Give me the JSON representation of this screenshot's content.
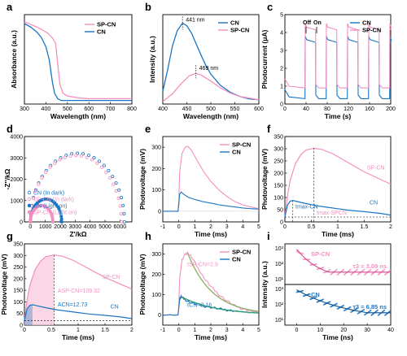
{
  "colors": {
    "pink": "#F48FC0",
    "blue": "#1A75C4",
    "lightpink": "#F9C9DE",
    "green": "#2E9E74",
    "olive": "#8DB36A"
  },
  "chart_data": [
    {
      "id": "a",
      "type": "line",
      "panel_label": "a",
      "xlabel": "Wavelength (nm)",
      "ylabel": "Absorbance (a.u.)",
      "xlim": [
        300,
        800
      ],
      "xticks": [
        300,
        400,
        500,
        600,
        700,
        800
      ],
      "legend": "top-right",
      "series": [
        {
          "name": "SP-CN",
          "color": "pink",
          "x": [
            300,
            330,
            360,
            390,
            410,
            430,
            445,
            455,
            465,
            480,
            500,
            550,
            600,
            700,
            800
          ],
          "y": [
            0.92,
            0.89,
            0.86,
            0.82,
            0.79,
            0.74,
            0.68,
            0.45,
            0.22,
            0.12,
            0.09,
            0.07,
            0.06,
            0.06,
            0.06
          ]
        },
        {
          "name": "CN",
          "color": "blue",
          "x": [
            300,
            330,
            360,
            380,
            400,
            415,
            430,
            440,
            455,
            470,
            500,
            600,
            800
          ],
          "y": [
            0.9,
            0.86,
            0.8,
            0.74,
            0.64,
            0.5,
            0.25,
            0.12,
            0.06,
            0.04,
            0.04,
            0.04,
            0.04
          ]
        }
      ]
    },
    {
      "id": "b",
      "type": "line",
      "panel_label": "b",
      "xlabel": "Wavelength (nm)",
      "ylabel": "Intensity (a.u.)",
      "xlim": [
        400,
        600
      ],
      "xticks": [
        400,
        450,
        500,
        550,
        600
      ],
      "legend": "top-right",
      "annotations": [
        {
          "text": "441 nm",
          "x": 441,
          "y": 0.95
        },
        {
          "text": "469 nm",
          "x": 469,
          "y": 0.38
        }
      ],
      "series": [
        {
          "name": "CN",
          "color": "blue",
          "x": [
            400,
            410,
            420,
            430,
            441,
            450,
            460,
            470,
            480,
            490,
            500,
            520,
            540,
            560,
            580,
            600
          ],
          "y": [
            0.15,
            0.4,
            0.68,
            0.86,
            0.95,
            0.92,
            0.83,
            0.7,
            0.57,
            0.45,
            0.35,
            0.22,
            0.14,
            0.09,
            0.06,
            0.05
          ]
        },
        {
          "name": "SP-CN",
          "color": "pink",
          "x": [
            400,
            420,
            440,
            455,
            469,
            480,
            500,
            520,
            540,
            560,
            580,
            600
          ],
          "y": [
            0.03,
            0.12,
            0.25,
            0.33,
            0.36,
            0.34,
            0.27,
            0.19,
            0.13,
            0.09,
            0.07,
            0.05
          ]
        }
      ]
    },
    {
      "id": "c",
      "type": "line",
      "panel_label": "c",
      "xlabel": "Time (s)",
      "ylabel": "Photocurrent (μA)",
      "xlim": [
        0,
        200
      ],
      "ylim": [
        0,
        5
      ],
      "xticks": [
        0,
        40,
        80,
        120,
        160,
        200
      ],
      "yticks": [
        0,
        1,
        2,
        3,
        4,
        5
      ],
      "legend": "top-right",
      "annotations": [
        {
          "text": "Off",
          "x": 40
        },
        {
          "text": "On",
          "x": 60
        }
      ],
      "series": [
        {
          "name": "CN",
          "color": "blue",
          "on": [
            [
              38,
              58
            ],
            [
              78,
              98
            ],
            [
              118,
              138
            ],
            [
              158,
              178
            ],
            [
              198,
              200
            ]
          ],
          "on_level": 3.6,
          "off_level": 0.3
        },
        {
          "name": "SP-CN",
          "color": "pink",
          "on": [
            [
              38,
              58
            ],
            [
              78,
              98
            ],
            [
              118,
              138
            ],
            [
              158,
              178
            ],
            [
              198,
              200
            ]
          ],
          "on_level": 4.3,
          "off_level": 0.9
        }
      ]
    },
    {
      "id": "d",
      "type": "scatter",
      "panel_label": "d",
      "xlabel": "Z'/kΩ",
      "ylabel": "-Z''/kΩ",
      "xlim": [
        -400,
        6800
      ],
      "ylim": [
        0,
        4000
      ],
      "xticks": [
        0,
        1000,
        2000,
        3000,
        4000,
        5000,
        6000
      ],
      "yticks": [
        0,
        1000,
        2000,
        3000,
        4000
      ],
      "legend": "bottom-left",
      "series": [
        {
          "name": "CN (In dark)",
          "color": "blue",
          "marker": "open-circle",
          "x0": 0,
          "x1": 6300
        },
        {
          "name": "SP-CN (In dark)",
          "color": "pink",
          "marker": "open-circle",
          "x0": 0,
          "x1": 6100
        },
        {
          "name": "CN (Light on)",
          "color": "blue",
          "marker": "filled-circle",
          "x0": 0,
          "x1": 2100
        },
        {
          "name": "SP-CN (Light on)",
          "color": "pink",
          "marker": "filled-circle",
          "x0": 0,
          "x1": 1500
        }
      ]
    },
    {
      "id": "e",
      "type": "line",
      "panel_label": "e",
      "xlabel": "Time (ms)",
      "ylabel": "Photovoltage (mV)",
      "xlim": [
        -1,
        5
      ],
      "ylim": [
        -50,
        350
      ],
      "xticks": [
        -1,
        0,
        1,
        2,
        3,
        4,
        5
      ],
      "yticks": [
        0,
        100,
        200,
        300
      ],
      "legend": "top-right",
      "series": [
        {
          "name": "SP-CN",
          "color": "pink",
          "x": [
            -1,
            -0.05,
            0,
            0.05,
            0.2,
            0.4,
            0.55,
            0.8,
            1.2,
            1.6,
            2,
            2.5,
            3,
            3.5,
            4,
            4.5,
            5
          ],
          "y": [
            0,
            0,
            50,
            180,
            270,
            300,
            305,
            285,
            230,
            180,
            140,
            100,
            70,
            45,
            30,
            20,
            12
          ]
        },
        {
          "name": "CN",
          "color": "blue",
          "x": [
            -1,
            -0.05,
            0,
            0.05,
            0.15,
            0.3,
            0.6,
            1,
            1.5,
            2,
            2.5,
            3,
            3.5,
            4,
            4.5,
            5
          ],
          "y": [
            0,
            0,
            30,
            80,
            90,
            80,
            65,
            55,
            45,
            38,
            30,
            25,
            20,
            15,
            12,
            10
          ]
        }
      ]
    },
    {
      "id": "f",
      "type": "line",
      "panel_label": "f",
      "xlabel": "Time (ms)",
      "ylabel": "Photovoltage (mV)",
      "xlim": [
        0,
        2
      ],
      "ylim": [
        0,
        350
      ],
      "xticks": [
        0,
        0.5,
        1,
        1.5,
        2
      ],
      "yticks": [
        0,
        50,
        100,
        150,
        200,
        250,
        300,
        350
      ],
      "annotations": [
        {
          "text": "tmax-CN",
          "x": 0.15
        },
        {
          "text": "tmax-SPCN",
          "x": 0.55
        },
        {
          "text": "SP-CN"
        },
        {
          "text": "CN"
        }
      ],
      "series": [
        {
          "name": "SP-CN",
          "color": "pink",
          "x": [
            0,
            0.05,
            0.1,
            0.2,
            0.3,
            0.4,
            0.55,
            0.7,
            0.9,
            1.1,
            1.3,
            1.5,
            1.7,
            2
          ],
          "y": [
            20,
            110,
            170,
            240,
            275,
            295,
            302,
            297,
            280,
            255,
            230,
            205,
            185,
            155
          ]
        },
        {
          "name": "CN",
          "color": "blue",
          "x": [
            0,
            0.05,
            0.1,
            0.15,
            0.2,
            0.4,
            0.6,
            0.8,
            1,
            1.2,
            1.5,
            1.8,
            2
          ],
          "y": [
            20,
            70,
            85,
            88,
            85,
            75,
            66,
            60,
            54,
            48,
            42,
            35,
            28
          ]
        }
      ]
    },
    {
      "id": "g",
      "type": "area",
      "panel_label": "g",
      "xlabel": "Time (ms)",
      "ylabel": "Photovoltage (mV)",
      "xlim": [
        0,
        2
      ],
      "ylim": [
        0,
        350
      ],
      "xticks": [
        0,
        0.5,
        1,
        1.5,
        2
      ],
      "yticks": [
        0,
        50,
        100,
        150,
        200,
        250,
        300,
        350
      ],
      "annotations": [
        {
          "text": "ASP-CN=109.32"
        },
        {
          "text": "ACN=12.73"
        },
        {
          "text": "SP-CN"
        },
        {
          "text": "CN"
        }
      ],
      "series": [
        {
          "name": "SP-CN",
          "color": "pink",
          "x": [
            0,
            0.05,
            0.1,
            0.2,
            0.3,
            0.4,
            0.55,
            0.7,
            0.9,
            1.1,
            1.3,
            1.5,
            1.7,
            2
          ],
          "y": [
            20,
            110,
            170,
            240,
            275,
            295,
            302,
            297,
            280,
            255,
            230,
            205,
            185,
            155
          ]
        },
        {
          "name": "CN",
          "color": "blue",
          "x": [
            0,
            0.05,
            0.1,
            0.15,
            0.2,
            0.4,
            0.6,
            0.8,
            1,
            1.2,
            1.5,
            1.8,
            2
          ],
          "y": [
            20,
            70,
            85,
            88,
            85,
            75,
            66,
            60,
            54,
            48,
            42,
            35,
            28
          ]
        }
      ]
    },
    {
      "id": "h",
      "type": "line",
      "panel_label": "h",
      "xlabel": "Time (ms)",
      "ylabel": "Photovoltage (mV)",
      "xlim": [
        -1,
        5
      ],
      "ylim": [
        -50,
        350
      ],
      "xticks": [
        -1,
        0,
        1,
        2,
        3,
        4,
        5
      ],
      "yticks": [
        0,
        100,
        200,
        300
      ],
      "legend": "top-right",
      "annotations": [
        {
          "text": "τSP-CN=2.9"
        },
        {
          "text": "τCN=2.16"
        }
      ],
      "series": [
        {
          "name": "SP-CN",
          "color": "pink",
          "x": [
            -1,
            -0.05,
            0,
            0.05,
            0.2,
            0.4,
            0.55,
            0.8,
            1.2,
            1.6,
            2,
            2.5,
            3,
            3.5,
            4,
            4.5,
            5
          ],
          "y": [
            0,
            0,
            50,
            180,
            270,
            300,
            305,
            285,
            230,
            180,
            140,
            100,
            70,
            45,
            30,
            20,
            12
          ]
        },
        {
          "name": "CN",
          "color": "blue",
          "x": [
            -1,
            -0.05,
            0,
            0.05,
            0.15,
            0.3,
            0.6,
            1,
            1.5,
            2,
            2.5,
            3,
            3.5,
            4,
            4.5,
            5
          ],
          "y": [
            0,
            0,
            30,
            80,
            90,
            80,
            65,
            55,
            45,
            38,
            30,
            25,
            20,
            15,
            12,
            10
          ]
        }
      ]
    },
    {
      "id": "i",
      "type": "scatter",
      "panel_label": "i",
      "xlabel": "Time (ns)",
      "ylabel": "Intensity (a.u.)",
      "xlim": [
        -5,
        40
      ],
      "xticks": [
        0,
        10,
        20,
        30,
        40
      ],
      "yscale": "log",
      "subpanels": [
        {
          "name": "SP-CN",
          "color": "pink",
          "label": "τ3 = 3.09 ns",
          "yticks": [
            "10³",
            "10²",
            "10¹"
          ]
        },
        {
          "name": "CN",
          "color": "blue",
          "label": "τ3 = 6.85 ns",
          "yticks": [
            "10³",
            "10²",
            "10¹"
          ]
        }
      ]
    }
  ]
}
